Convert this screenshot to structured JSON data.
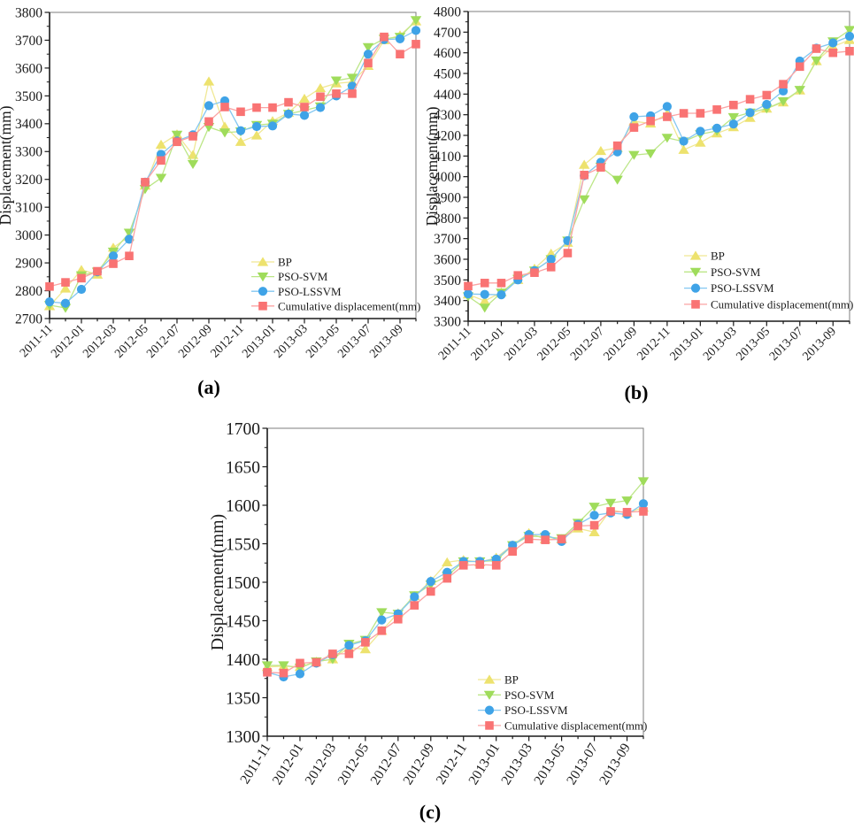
{
  "figure": {
    "captions": {
      "a": "(a)",
      "b": "(b)",
      "c": "(c)"
    },
    "axis_color": "#1a1a1a",
    "frame_color": "#7d7d7d",
    "background": "#ffffff"
  },
  "chart_data": [
    {
      "id": "a",
      "type": "line",
      "title": "",
      "xlabel": "",
      "ylabel": "Displacement(mm)",
      "ylim": [
        2700,
        3800
      ],
      "ytick_step": 100,
      "grid": false,
      "legend_position": "inside-lower-right",
      "caption": "(a)",
      "x_tick_labels": [
        "2011-11",
        "2012-01",
        "2012-03",
        "2012-05",
        "2012-07",
        "2012-09",
        "2012-11",
        "2013-01",
        "2013-03",
        "2013-05",
        "2013-07",
        "2013-09"
      ],
      "categories": [
        "2011-11",
        "2011-12",
        "2012-01",
        "2012-02",
        "2012-03",
        "2012-04",
        "2012-05",
        "2012-06",
        "2012-07",
        "2012-08",
        "2012-09",
        "2012-10",
        "2012-11",
        "2012-12",
        "2013-01",
        "2013-02",
        "2013-03",
        "2013-04",
        "2013-05",
        "2013-06",
        "2013-07",
        "2013-08",
        "2013-09",
        "2013-10"
      ],
      "series": [
        {
          "name": "BP",
          "marker": "triangle-up",
          "color": "#EDE26E",
          "line_color": "#F0E895",
          "values": [
            2745,
            2808,
            2875,
            2858,
            2955,
            2995,
            3178,
            3325,
            3362,
            3288,
            3552,
            3390,
            3335,
            3358,
            3410,
            3440,
            3490,
            3528,
            3545,
            3550,
            3608,
            3700,
            3718,
            3768
          ]
        },
        {
          "name": "PSO-SVM",
          "marker": "triangle-down",
          "color": "#9FDC5B",
          "line_color": "#BCE687",
          "values": [
            2748,
            2738,
            2855,
            2868,
            2940,
            3008,
            3165,
            3205,
            3360,
            3255,
            3388,
            3368,
            3372,
            3395,
            3400,
            3435,
            3448,
            3462,
            3555,
            3565,
            3675,
            3705,
            3712,
            3772
          ]
        },
        {
          "name": "PSO-LSSVM",
          "marker": "circle",
          "color": "#3FA3E7",
          "line_color": "#83C7F1",
          "values": [
            2760,
            2755,
            2805,
            2868,
            2925,
            2985,
            3190,
            3290,
            3338,
            3360,
            3465,
            3482,
            3375,
            3390,
            3392,
            3435,
            3430,
            3458,
            3500,
            3535,
            3650,
            3702,
            3705,
            3735
          ]
        },
        {
          "name": "Cumulative displacement(mm)",
          "marker": "square",
          "color": "#F97373",
          "line_color": "#FBA3A3",
          "values": [
            2815,
            2830,
            2845,
            2870,
            2897,
            2925,
            3190,
            3268,
            3335,
            3355,
            3408,
            3460,
            3443,
            3458,
            3458,
            3477,
            3460,
            3497,
            3508,
            3508,
            3618,
            3712,
            3650,
            3686
          ]
        }
      ]
    },
    {
      "id": "b",
      "type": "line",
      "title": "",
      "xlabel": "",
      "ylabel": "Displacement(mm)",
      "ylim": [
        3300,
        4800
      ],
      "ytick_step": 100,
      "grid": false,
      "legend_position": "inside-lower-right",
      "caption": "(b)",
      "x_tick_labels": [
        "2011-11",
        "2012-01",
        "2012-03",
        "2012-05",
        "2012-07",
        "2012-09",
        "2012-11",
        "2013-01",
        "2013-03",
        "2013-05",
        "2013-07",
        "2013-09"
      ],
      "categories": [
        "2011-11",
        "2011-12",
        "2012-01",
        "2012-02",
        "2012-03",
        "2012-04",
        "2012-05",
        "2012-06",
        "2012-07",
        "2012-08",
        "2012-09",
        "2012-10",
        "2012-11",
        "2012-12",
        "2013-01",
        "2013-02",
        "2013-03",
        "2013-04",
        "2013-05",
        "2013-06",
        "2013-07",
        "2013-08",
        "2013-09",
        "2013-10"
      ],
      "series": [
        {
          "name": "BP",
          "marker": "triangle-up",
          "color": "#EDE26E",
          "line_color": "#F0E895",
          "values": [
            3430,
            3398,
            3440,
            3500,
            3555,
            3628,
            3680,
            4058,
            4125,
            4140,
            4268,
            4258,
            4305,
            4130,
            4165,
            4210,
            4240,
            4285,
            4330,
            4360,
            4418,
            4560,
            4630,
            4662
          ]
        },
        {
          "name": "PSO-SVM",
          "marker": "triangle-down",
          "color": "#9FDC5B",
          "line_color": "#BCE687",
          "values": [
            3420,
            3365,
            3438,
            3505,
            3545,
            3600,
            3690,
            3890,
            4048,
            3985,
            4105,
            4112,
            4188,
            4170,
            4205,
            4222,
            4288,
            4310,
            4330,
            4365,
            4420,
            4562,
            4655,
            4710
          ]
        },
        {
          "name": "PSO-LSSVM",
          "marker": "circle",
          "color": "#3FA3E7",
          "line_color": "#83C7F1",
          "values": [
            3432,
            3430,
            3428,
            3500,
            3545,
            3600,
            3690,
            4005,
            4070,
            4120,
            4290,
            4295,
            4340,
            4172,
            4220,
            4235,
            4255,
            4310,
            4350,
            4415,
            4560,
            4622,
            4648,
            4680
          ]
        },
        {
          "name": "Cumulative displacement(mm)",
          "marker": "square",
          "color": "#F97373",
          "line_color": "#FBA3A3",
          "values": [
            3470,
            3485,
            3485,
            3522,
            3535,
            3562,
            3630,
            4008,
            4045,
            4150,
            4238,
            4270,
            4290,
            4307,
            4307,
            4325,
            4347,
            4375,
            4395,
            4448,
            4533,
            4620,
            4600,
            4608
          ]
        }
      ]
    },
    {
      "id": "c",
      "type": "line",
      "title": "",
      "xlabel": "",
      "ylabel": "Displacement(mm)",
      "ylim": [
        1300,
        1700
      ],
      "ytick_step": 50,
      "grid": false,
      "legend_position": "inside-lower-right",
      "caption": "(c)",
      "x_tick_labels": [
        "2011-11",
        "2012-01",
        "2012-03",
        "2012-05",
        "2012-07",
        "2012-09",
        "2012-11",
        "2013-01",
        "2013-03",
        "2013-05",
        "2013-07",
        "2013-09"
      ],
      "categories": [
        "2011-11",
        "2011-12",
        "2012-01",
        "2012-02",
        "2012-03",
        "2012-04",
        "2012-05",
        "2012-06",
        "2012-07",
        "2012-08",
        "2012-09",
        "2012-10",
        "2012-11",
        "2012-12",
        "2013-01",
        "2013-02",
        "2013-03",
        "2013-04",
        "2013-05",
        "2013-06",
        "2013-07",
        "2013-08",
        "2013-09",
        "2013-10"
      ],
      "series": [
        {
          "name": "BP",
          "marker": "triangle-up",
          "color": "#EDE26E",
          "line_color": "#F0E895",
          "values": [
            1390,
            1391,
            1390,
            1397,
            1400,
            1415,
            1413,
            1437,
            1460,
            1482,
            1502,
            1526,
            1529,
            1526,
            1532,
            1548,
            1564,
            1556,
            1556,
            1570,
            1565,
            1594,
            1590,
            1597
          ]
        },
        {
          "name": "PSO-SVM",
          "marker": "triangle-down",
          "color": "#9FDC5B",
          "line_color": "#BCE687",
          "values": [
            1392,
            1392,
            1389,
            1397,
            1400,
            1420,
            1425,
            1461,
            1459,
            1483,
            1497,
            1508,
            1527,
            1527,
            1528,
            1548,
            1560,
            1559,
            1557,
            1577,
            1598,
            1603,
            1606,
            1631
          ]
        },
        {
          "name": "PSO-LSSVM",
          "marker": "circle",
          "color": "#3FA3E7",
          "line_color": "#83C7F1",
          "values": [
            1383,
            1377,
            1381,
            1395,
            1406,
            1418,
            1424,
            1451,
            1459,
            1481,
            1501,
            1513,
            1527,
            1527,
            1530,
            1548,
            1562,
            1562,
            1553,
            1575,
            1587,
            1590,
            1588,
            1602
          ]
        },
        {
          "name": "Cumulative displacement(mm)",
          "marker": "square",
          "color": "#F97373",
          "line_color": "#FBA3A3",
          "values": [
            1383,
            1382,
            1395,
            1396,
            1407,
            1407,
            1422,
            1437,
            1452,
            1470,
            1488,
            1505,
            1522,
            1523,
            1522,
            1540,
            1556,
            1555,
            1556,
            1573,
            1574,
            1592,
            1591,
            1592
          ]
        }
      ]
    }
  ]
}
